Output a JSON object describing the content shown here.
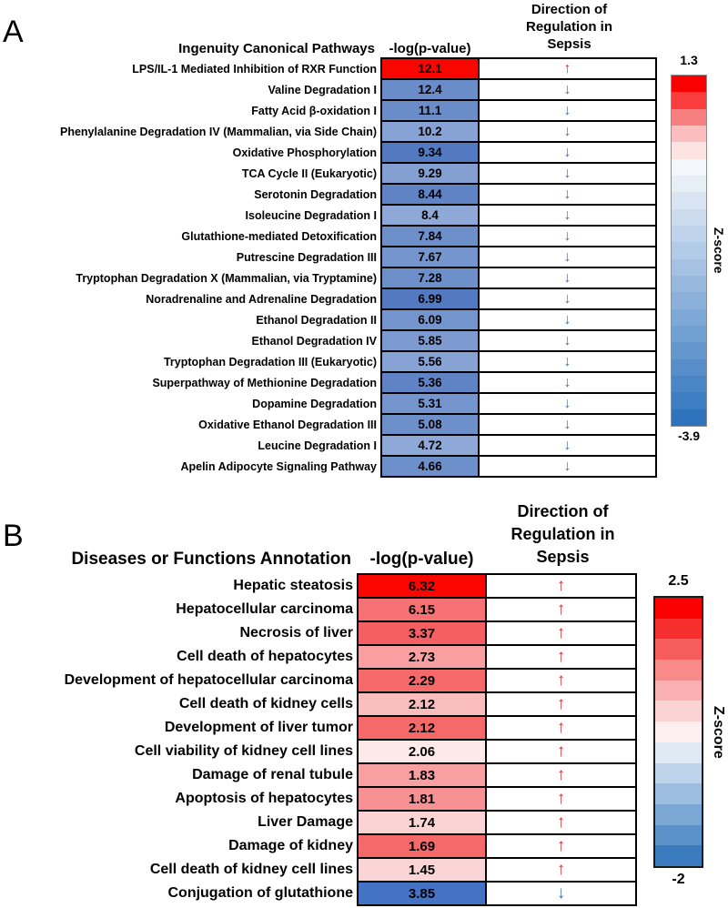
{
  "colors": {
    "up_arrow": "#D93438",
    "down_arrow": "#4472C4",
    "cell_border": "#000000",
    "background": "#ffffff"
  },
  "icons": {
    "up": "↑",
    "down": "↓"
  },
  "chart_data": [
    {
      "type": "heatmap",
      "panel": "A",
      "row_header": "Ingenuity Canonical Pathways",
      "value_header": "-log(p-value)",
      "direction_header": "Direction of Regulation in Sepsis",
      "direction_header_lines": [
        "Direction of",
        "Regulation in",
        "Sepsis"
      ],
      "colorbar": {
        "axis_label": "Z-score",
        "max_label": "1.3",
        "min_label": "-3.9",
        "z_max": 1.3,
        "z_min": -3.9,
        "steps": [
          "#FB0000",
          "#F93C3C",
          "#F87F7F",
          "#FBBDBD",
          "#FDE2E2",
          "#F3F6FA",
          "#E6EEF6",
          "#D9E5F2",
          "#CCDCEE",
          "#BFD4EA",
          "#B2CBE6",
          "#A5C2E2",
          "#98B9DE",
          "#8BB1DA",
          "#7EA8D6",
          "#71A0D2",
          "#6497CE",
          "#578ECA",
          "#4A86C6",
          "#3D7DC2",
          "#2E73BC"
        ]
      },
      "rows": [
        {
          "label": "LPS/IL-1 Mediated Inhibition of RXR Function",
          "value": "12.1",
          "direction": "up",
          "color": "#FB0500"
        },
        {
          "label": "Valine Degradation I",
          "value": "12.4",
          "direction": "down",
          "color": "#6A8CC9"
        },
        {
          "label": "Fatty Acid β-oxidation I",
          "value": "11.1",
          "direction": "down",
          "color": "#6A8CC9"
        },
        {
          "label": "Phenylalanine Degradation IV (Mammalian, via Side Chain)",
          "value": "10.2",
          "direction": "down",
          "color": "#87A2D4"
        },
        {
          "label": "Oxidative Phosphorylation",
          "value": "9.34",
          "direction": "down",
          "color": "#5379C0"
        },
        {
          "label": "TCA Cycle II (Eukaryotic)",
          "value": "9.29",
          "direction": "down",
          "color": "#84A0D3"
        },
        {
          "label": "Serotonin Degradation",
          "value": "8.44",
          "direction": "down",
          "color": "#5F83C5"
        },
        {
          "label": "Isoleucine Degradation I",
          "value": "8.4",
          "direction": "down",
          "color": "#8EA8D7"
        },
        {
          "label": "Glutathione-mediated Detoxification",
          "value": "7.84",
          "direction": "down",
          "color": "#6D8FCA"
        },
        {
          "label": "Putrescine Degradation III",
          "value": "7.67",
          "direction": "down",
          "color": "#7495CE"
        },
        {
          "label": "Tryptophan Degradation X (Mammalian, via Tryptamine)",
          "value": "7.28",
          "direction": "down",
          "color": "#6D8FCA"
        },
        {
          "label": "Noradrenaline and Adrenaline Degradation",
          "value": "6.99",
          "direction": "down",
          "color": "#5379C0"
        },
        {
          "label": "Ethanol Degradation II",
          "value": "6.09",
          "direction": "down",
          "color": "#7495CE"
        },
        {
          "label": "Ethanol Degradation IV",
          "value": "5.85",
          "direction": "down",
          "color": "#7E9BD1"
        },
        {
          "label": "Tryptophan Degradation III (Eukaryotic)",
          "value": "5.56",
          "direction": "down",
          "color": "#87A2D4"
        },
        {
          "label": "Superpathway of Methionine Degradation",
          "value": "5.36",
          "direction": "down",
          "color": "#5F83C5"
        },
        {
          "label": "Dopamine Degradation",
          "value": "5.31",
          "direction": "down",
          "color": "#7495CE"
        },
        {
          "label": "Oxidative Ethanol Degradation III",
          "value": "5.08",
          "direction": "down",
          "color": "#6D8FCA"
        },
        {
          "label": "Leucine Degradation I",
          "value": "4.72",
          "direction": "down",
          "color": "#8EA8D7"
        },
        {
          "label": "Apelin Adipocyte Signaling Pathway",
          "value": "4.66",
          "direction": "down",
          "color": "#6D8FCA"
        }
      ]
    },
    {
      "type": "heatmap",
      "panel": "B",
      "row_header": "Diseases or Functions Annotation",
      "value_header": "-log(p-value)",
      "direction_header": "Direction of Regulation in Sepsis",
      "direction_header_lines": [
        "Direction of",
        "Regulation in",
        "Sepsis"
      ],
      "colorbar": {
        "axis_label": "Z-score",
        "max_label": "2.5",
        "min_label": "-2",
        "z_max": 2.5,
        "z_min": -2,
        "steps": [
          "#FB0000",
          "#F72E2E",
          "#F65C5C",
          "#F88A8A",
          "#FAB0B0",
          "#FCD3D3",
          "#FDEFEF",
          "#DEE9F4",
          "#BDD3EA",
          "#9CBDDF",
          "#7BA7D4",
          "#5A91C9",
          "#3A7BBE"
        ]
      },
      "rows": [
        {
          "label": "Hepatic steatosis",
          "value": "6.32",
          "direction": "up",
          "color": "#FB0500"
        },
        {
          "label": "Hepatocellular carcinoma",
          "value": "6.15",
          "direction": "up",
          "color": "#F57173"
        },
        {
          "label": "Necrosis of liver",
          "value": "3.37",
          "direction": "up",
          "color": "#F45F61"
        },
        {
          "label": "Cell death of hepatocytes",
          "value": "2.73",
          "direction": "up",
          "color": "#F8A0A1"
        },
        {
          "label": "Development of hepatocellular carcinoma",
          "value": "2.29",
          "direction": "up",
          "color": "#F5696B"
        },
        {
          "label": "Cell death of kidney cells",
          "value": "2.12",
          "direction": "up",
          "color": "#FABDBE"
        },
        {
          "label": "Development of liver tumor",
          "value": "2.12",
          "direction": "up",
          "color": "#F5696B"
        },
        {
          "label": "Cell viability of kidney cell lines",
          "value": "2.06",
          "direction": "up",
          "color": "#FDE9E9"
        },
        {
          "label": "Damage of renal tubule",
          "value": "1.83",
          "direction": "up",
          "color": "#F8A0A1"
        },
        {
          "label": "Apoptosis of hepatocytes",
          "value": "1.81",
          "direction": "up",
          "color": "#F79193"
        },
        {
          "label": "Liver Damage",
          "value": "1.74",
          "direction": "up",
          "color": "#FBD3D4"
        },
        {
          "label": "Damage of kidney",
          "value": "1.69",
          "direction": "up",
          "color": "#F5696B"
        },
        {
          "label": "Cell death of kidney cell lines",
          "value": "1.45",
          "direction": "up",
          "color": "#FBD5D6"
        },
        {
          "label": "Conjugation of glutathione",
          "value": "3.85",
          "direction": "down",
          "color": "#4472C4"
        }
      ]
    }
  ]
}
